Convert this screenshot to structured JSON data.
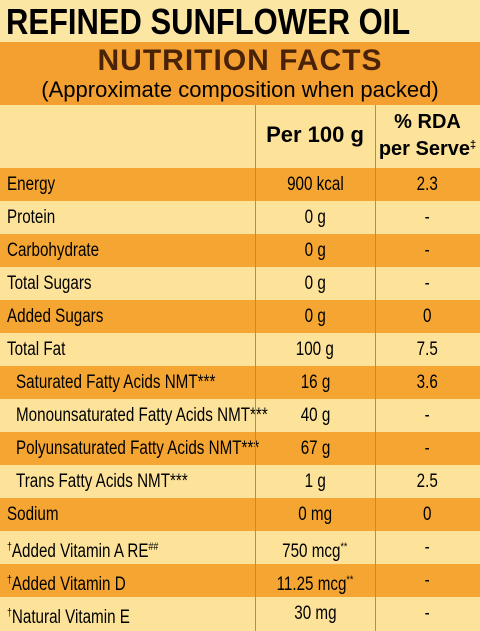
{
  "header": {
    "product": "REFINED SUNFLOWER OIL",
    "title": "NUTRITION FACTS",
    "subtitle": "(Approximate composition when packed)"
  },
  "table": {
    "columns": [
      {
        "text": "Per 100 g"
      },
      {
        "text": "% RDA",
        "line2": "per Serve",
        "sup": "‡"
      }
    ],
    "rows": [
      {
        "label": "Energy",
        "per100g": "900 kcal",
        "rda": "2.3"
      },
      {
        "label": "Protein",
        "per100g": "0 g",
        "rda": "-"
      },
      {
        "label": "Carbohydrate",
        "per100g": "0 g",
        "rda": "-"
      },
      {
        "label": "Total Sugars",
        "per100g": "0 g",
        "rda": "-"
      },
      {
        "label": "Added Sugars",
        "per100g": "0 g",
        "rda": "0"
      },
      {
        "label": "Total Fat",
        "per100g": "100 g",
        "rda": "7.5"
      },
      {
        "label": "Saturated Fatty Acids NMT***",
        "indent": true,
        "per100g": "16 g",
        "rda": "3.6"
      },
      {
        "label": "Monounsaturated Fatty Acids NMT***",
        "indent": true,
        "per100g": "40 g",
        "rda": "-"
      },
      {
        "label": "Polyunsaturated Fatty Acids NMT***",
        "indent": true,
        "per100g": "67 g",
        "rda": "-"
      },
      {
        "label": "Trans Fatty Acids NMT***",
        "indent": true,
        "per100g": "1 g",
        "rda": "2.5"
      },
      {
        "label": "Sodium",
        "per100g": "0 mg",
        "rda": "0"
      },
      {
        "pre": "†",
        "label": "Added Vitamin A RE",
        "sup": "##",
        "per100g": "750 mcg",
        "per100g_sup": "**",
        "rda": "-"
      },
      {
        "pre": "†",
        "label": "Added Vitamin D",
        "per100g": "11.25 mcg",
        "per100g_sup": "**",
        "rda": "-"
      },
      {
        "pre": "†",
        "label": "Natural Vitamin E",
        "per100g": "30 mg",
        "rda": "-"
      }
    ]
  }
}
